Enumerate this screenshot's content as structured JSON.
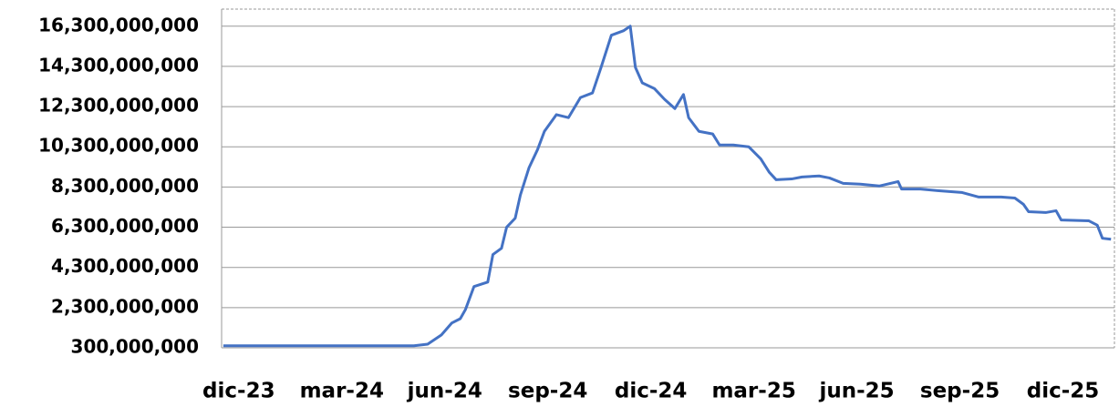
{
  "chart_data": {
    "type": "line",
    "x": [
      -0.45,
      5.1,
      5.5,
      5.9,
      6.2,
      6.45,
      6.6,
      6.85,
      7.25,
      7.4,
      7.65,
      7.8,
      8.05,
      8.2,
      8.45,
      8.7,
      8.9,
      9.25,
      9.6,
      9.95,
      10.3,
      10.55,
      10.85,
      11.2,
      11.4,
      11.55,
      11.75,
      12.1,
      12.4,
      12.7,
      12.95,
      13.1,
      13.4,
      13.8,
      14.0,
      14.4,
      14.85,
      15.2,
      15.45,
      15.65,
      16.1,
      16.4,
      16.9,
      17.2,
      17.6,
      18.1,
      18.65,
      19.2,
      19.3,
      19.85,
      20.35,
      21.05,
      21.55,
      22.2,
      22.6,
      22.85,
      23.0,
      23.5,
      23.8,
      23.95,
      24.75,
      25.0,
      25.15,
      25.4
    ],
    "series": [
      {
        "color": "#4472c4",
        "values": [
          400000000,
          400000000,
          480000000,
          940000000,
          1530000000,
          1750000000,
          2200000000,
          3350000000,
          3570000000,
          4940000000,
          5250000000,
          6300000000,
          6750000000,
          7900000000,
          9250000000,
          10160000000,
          11070000000,
          11900000000,
          11750000000,
          12750000000,
          12980000000,
          14250000000,
          15850000000,
          16070000000,
          16300000000,
          14250000000,
          13480000000,
          13200000000,
          12660000000,
          12200000000,
          12900000000,
          11750000000,
          11070000000,
          10940000000,
          10390000000,
          10390000000,
          10300000000,
          9700000000,
          9030000000,
          8660000000,
          8700000000,
          8800000000,
          8850000000,
          8750000000,
          8480000000,
          8440000000,
          8350000000,
          8570000000,
          8200000000,
          8200000000,
          8120000000,
          8030000000,
          7800000000,
          7800000000,
          7750000000,
          7440000000,
          7070000000,
          7030000000,
          7120000000,
          6660000000,
          6620000000,
          6400000000,
          5750000000,
          5700000000
        ]
      }
    ],
    "xlim": [
      -0.5,
      25.5
    ],
    "xticks": [
      {
        "value": 0,
        "label": "dic-23"
      },
      {
        "value": 3,
        "label": "mar-24"
      },
      {
        "value": 6,
        "label": "jun-24"
      },
      {
        "value": 9,
        "label": "sep-24"
      },
      {
        "value": 12,
        "label": "dic-24"
      },
      {
        "value": 15,
        "label": "mar-25"
      },
      {
        "value": 18,
        "label": "jun-25"
      },
      {
        "value": 21,
        "label": "sep-25"
      },
      {
        "value": 24,
        "label": "dic-25"
      }
    ],
    "ylim": [
      300000000,
      17150000000
    ],
    "yticks": [
      {
        "value": 300000000,
        "label": "300,000,000"
      },
      {
        "value": 2300000000,
        "label": "2,300,000,000"
      },
      {
        "value": 4300000000,
        "label": "4,300,000,000"
      },
      {
        "value": 6300000000,
        "label": "6,300,000,000"
      },
      {
        "value": 8300000000,
        "label": "8,300,000,000"
      },
      {
        "value": 10300000000,
        "label": "10,300,000,000"
      },
      {
        "value": 12300000000,
        "label": "12,300,000,000"
      },
      {
        "value": 14300000000,
        "label": "14,300,000,000"
      },
      {
        "value": 16300000000,
        "label": "16,300,000,000"
      }
    ],
    "grid": true
  }
}
